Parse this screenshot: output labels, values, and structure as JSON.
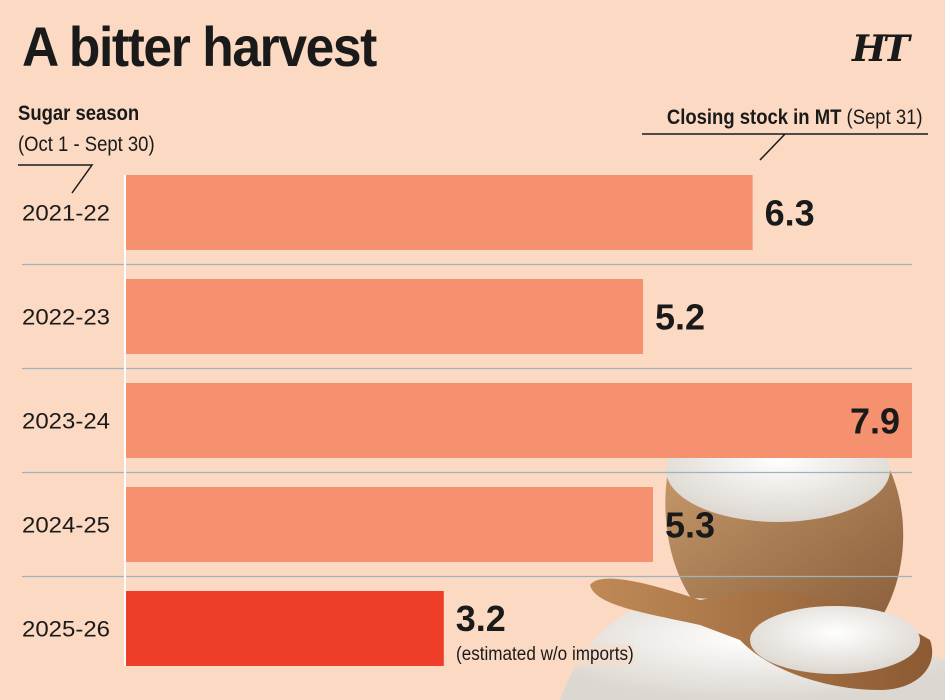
{
  "header": {
    "title": "A bitter harvest",
    "logo_text": "HT",
    "season_label": "Sugar season",
    "season_sub": "(Oct 1 - Sept 30)",
    "stock_label_bold": "Closing stock in MT",
    "stock_label_paren": "(Sept 31)"
  },
  "note": "(estimated w/o imports)",
  "colors": {
    "background": "#fbd9c2",
    "bar": "#f5916f",
    "bar_highlight": "#ee3e2a",
    "separator": "#9fb3bd",
    "sugar_sack": "#b08158",
    "sugar": "#f4f2ee",
    "scoop": "#a8734a"
  },
  "icons": [
    "sugar-sack-illustration",
    "wooden-scoop-illustration"
  ],
  "chart_data": {
    "type": "bar",
    "orientation": "horizontal",
    "categories": [
      "2021-22",
      "2022-23",
      "2023-24",
      "2024-25",
      "2025-26"
    ],
    "values": [
      6.3,
      5.2,
      7.9,
      5.3,
      3.2
    ],
    "value_labels": [
      "6.3",
      "5.2",
      "7.9",
      "5.3",
      "3.2"
    ],
    "highlighted_index": 4,
    "xlim": [
      0,
      7.9
    ],
    "title": "A bitter harvest",
    "xlabel": "Closing stock in MT (Sept 31)",
    "ylabel": "Sugar season (Oct 1 - Sept 30)",
    "grid": false
  }
}
